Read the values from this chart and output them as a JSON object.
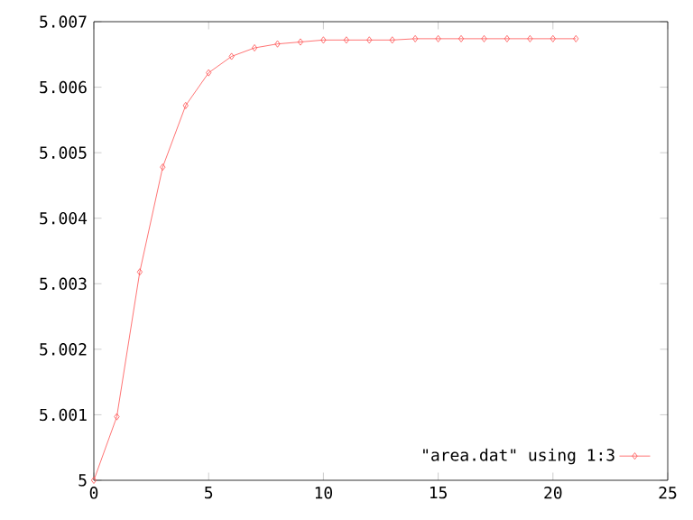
{
  "chart_data": {
    "type": "line",
    "x": [
      0,
      1,
      2,
      3,
      4,
      5,
      6,
      7,
      8,
      9,
      10,
      11,
      12,
      13,
      14,
      15,
      16,
      17,
      18,
      19,
      20,
      21
    ],
    "series": [
      {
        "name": "\"area.dat\" using 1:3",
        "color": "#ff5050",
        "values": [
          5.0,
          5.00097,
          5.00318,
          5.00478,
          5.00572,
          5.00622,
          5.00647,
          5.0066,
          5.00666,
          5.00669,
          5.00672,
          5.00672,
          5.00672,
          5.00672,
          5.00674,
          5.00674,
          5.00674,
          5.00674,
          5.00674,
          5.00674,
          5.00674,
          5.00674
        ]
      }
    ],
    "xlim": [
      0,
      25
    ],
    "xticks": [
      0,
      5,
      10,
      15,
      20,
      25
    ],
    "ylim": [
      5,
      5.007
    ],
    "yticks": [
      5,
      5.001,
      5.002,
      5.003,
      5.004,
      5.005,
      5.006,
      5.007
    ],
    "legend": "bottom right",
    "marker": "diamond",
    "line_style": "solid",
    "grid": false
  }
}
